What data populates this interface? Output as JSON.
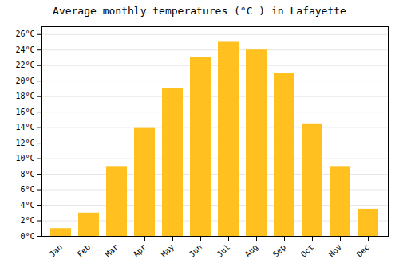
{
  "chart_data": {
    "type": "bar",
    "title": "Average monthly temperatures (°C ) in Lafayette",
    "categories": [
      "Jan",
      "Feb",
      "Mar",
      "Apr",
      "May",
      "Jun",
      "Jul",
      "Aug",
      "Sep",
      "Oct",
      "Nov",
      "Dec"
    ],
    "values": [
      1,
      3,
      9,
      14,
      19,
      23,
      25,
      24,
      21,
      14.5,
      9,
      3.5
    ],
    "color": "#FFC020",
    "ylim": [
      0,
      27
    ],
    "yticks": [
      {
        "value": 0,
        "label": "0°C"
      },
      {
        "value": 2,
        "label": "2°C"
      },
      {
        "value": 4,
        "label": "4°C"
      },
      {
        "value": 6,
        "label": "6°C"
      },
      {
        "value": 8,
        "label": "8°C"
      },
      {
        "value": 10,
        "label": "10°C"
      },
      {
        "value": 12,
        "label": "12°C"
      },
      {
        "value": 14,
        "label": "14°C"
      },
      {
        "value": 16,
        "label": "16°C"
      },
      {
        "value": 18,
        "label": "18°C"
      },
      {
        "value": 20,
        "label": "20°C"
      },
      {
        "value": 22,
        "label": "22°C"
      },
      {
        "value": 24,
        "label": "24°C"
      },
      {
        "value": 26,
        "label": "26°C"
      }
    ],
    "grid": true
  }
}
